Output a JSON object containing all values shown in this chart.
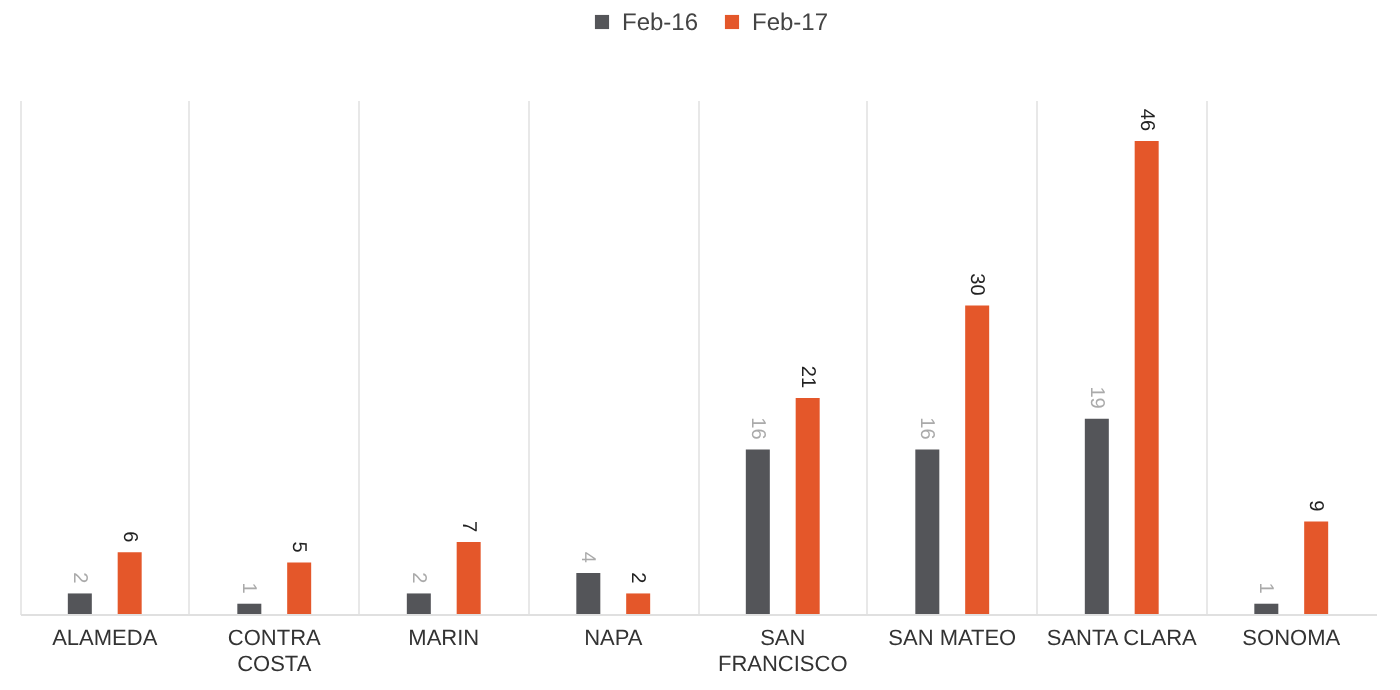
{
  "chart_data": {
    "type": "bar",
    "categories": [
      "ALAMEDA",
      "CONTRA COSTA",
      "MARIN",
      "NAPA",
      "SAN FRANCISCO",
      "SAN MATEO",
      "SANTA CLARA",
      "SONOMA"
    ],
    "series": [
      {
        "name": "Feb-16",
        "color": "#545559",
        "values": [
          2,
          1,
          2,
          4,
          16,
          16,
          19,
          1
        ]
      },
      {
        "name": "Feb-17",
        "color": "#e4572a",
        "values": [
          6,
          5,
          7,
          2,
          21,
          30,
          46,
          9
        ]
      }
    ],
    "data_labels": true,
    "legend": "top",
    "grid": "x"
  }
}
